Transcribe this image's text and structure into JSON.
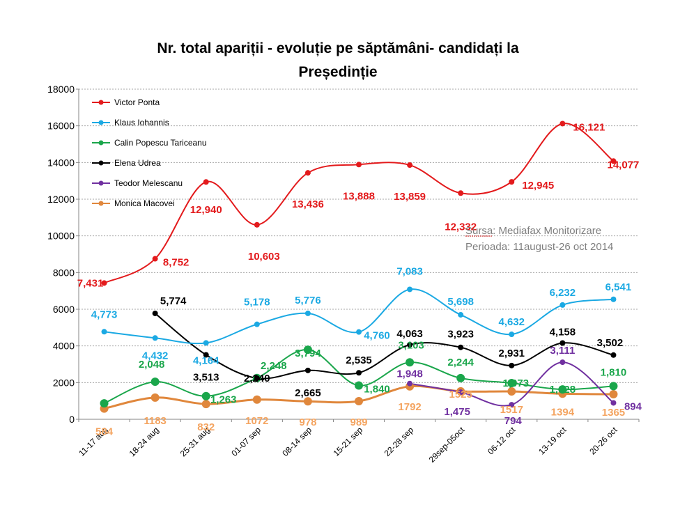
{
  "chart_data": {
    "type": "line",
    "title_line1": "Nr. total apariții - evoluție pe săptămâni- candidați la",
    "title_line2": "Președinție",
    "categories": [
      "11-17 aug",
      "18-24 aug",
      "25-31 aug",
      "01-07 sep",
      "08-14 sep",
      "15-21 sep",
      "22-28 sep",
      "29sep-05oct",
      "06-12 oct",
      "13-19 oct",
      "20-26 oct"
    ],
    "ylim": [
      0,
      18000
    ],
    "yticks": [
      "0",
      "2000",
      "4000",
      "6000",
      "8000",
      "10000",
      "12000",
      "14000",
      "16000",
      "18000"
    ],
    "grid": true,
    "legend_position": "top-left",
    "series": [
      {
        "name": "Victor Ponta",
        "color": "#e31a1c",
        "label_color": "#e31a1c",
        "values": [
          7431,
          8752,
          12940,
          10603,
          13436,
          13888,
          13859,
          12332,
          12945,
          16121,
          14077
        ],
        "labels": [
          "7,431",
          "8,752",
          "12,940",
          "10,603",
          "13,436",
          "13,888",
          "13,859",
          "12,332",
          "12,945",
          "16,121",
          "14,077"
        ]
      },
      {
        "name": "Klaus Iohannis",
        "color": "#1ba9e3",
        "label_color": "#1ba9e3",
        "values": [
          4773,
          4432,
          4164,
          5178,
          5776,
          4760,
          7083,
          5698,
          4632,
          6232,
          6541
        ],
        "labels": [
          "4,773",
          "4,432",
          "4,164",
          "5,178",
          "5,776",
          "4,760",
          "7,083",
          "5,698",
          "4,632",
          "6,232",
          "6,541"
        ]
      },
      {
        "name": "Calin Popescu Tariceanu",
        "color": "#1aa64b",
        "label_color": "#1aa64b",
        "values": [
          870,
          2048,
          1263,
          2248,
          3794,
          1840,
          3103,
          2244,
          1973,
          1628,
          1810
        ],
        "labels": [
          "",
          "2,048",
          "1,263",
          "2,248",
          "3,794",
          "1,840",
          "3,103",
          "2,244",
          "1,973",
          "1,628",
          "1,810"
        ]
      },
      {
        "name": "Elena Udrea",
        "color": "#000000",
        "label_color": "#000000",
        "values": [
          null,
          5774,
          3513,
          2240,
          2665,
          2535,
          4063,
          3923,
          2931,
          4158,
          3502
        ],
        "labels": [
          "",
          "5,774",
          "3,513",
          "2,240",
          "2,665",
          "2,535",
          "4,063",
          "3,923",
          "2,931",
          "4,158",
          "3,502"
        ]
      },
      {
        "name": "Teodor Melescanu",
        "color": "#7030a0",
        "label_color": "#7030a0",
        "values": [
          null,
          null,
          null,
          null,
          null,
          null,
          1948,
          1475,
          794,
          3111,
          894
        ],
        "labels": [
          "",
          "",
          "",
          "",
          "",
          "",
          "1,948",
          "1,475",
          "794",
          "3,111",
          "894"
        ]
      },
      {
        "name": "Monica Macovei",
        "color": "#e0873c",
        "label_color": "#f4a460",
        "values": [
          584,
          1183,
          832,
          1072,
          978,
          989,
          1792,
          1525,
          1517,
          1394,
          1365
        ],
        "labels": [
          "584",
          "1183",
          "832",
          "1072",
          "978",
          "989",
          "1792",
          "1525",
          "1517",
          "1394",
          "1365"
        ]
      }
    ]
  },
  "annotation": {
    "line1": "Sursa: Mediafax Monitorizare",
    "line2": "Perioada: 11august-26 oct 2014"
  }
}
